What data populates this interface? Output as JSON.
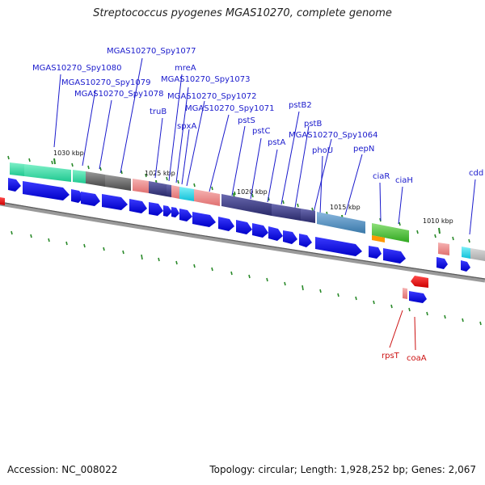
{
  "title": "Streptococcus pyogenes MGAS10270, complete genome",
  "footer": {
    "accession": "Accession: NC_008022",
    "summary": "Topology: circular; Length: 1,928,252 bp; Genes: 2,067"
  },
  "colors": {
    "backbone": "#7a7a7a",
    "cds": "#1010dd",
    "gene_label": "#1a1acc",
    "rna_label": "#cc1111",
    "rna": "#ee0000",
    "tick": "#2a8a2a"
  },
  "scale": {
    "ticks": [
      {
        "label": "1030 kbp"
      },
      {
        "label": "1025 kbp"
      },
      {
        "label": "1020 kbp"
      },
      {
        "label": "1015 kbp"
      },
      {
        "label": "1010 kbp"
      }
    ]
  },
  "gene_labels": [
    {
      "text": "MGAS10270_Spy1077",
      "color": "gene"
    },
    {
      "text": "MGAS10270_Spy1080",
      "color": "gene"
    },
    {
      "text": "mreA",
      "color": "gene"
    },
    {
      "text": "MGAS10270_Spy1073",
      "color": "gene"
    },
    {
      "text": "MGAS10270_Spy1079",
      "color": "gene"
    },
    {
      "text": "MGAS10270_Spy1078",
      "color": "gene"
    },
    {
      "text": "MGAS10270_Spy1072",
      "color": "gene"
    },
    {
      "text": "pstB2",
      "color": "gene"
    },
    {
      "text": "MGAS10270_Spy1071",
      "color": "gene"
    },
    {
      "text": "truB",
      "color": "gene"
    },
    {
      "text": "pstS",
      "color": "gene"
    },
    {
      "text": "pstB",
      "color": "gene"
    },
    {
      "text": "spxA",
      "color": "gene"
    },
    {
      "text": "pstC",
      "color": "gene"
    },
    {
      "text": "MGAS10270_Spy1064",
      "color": "gene"
    },
    {
      "text": "pstA",
      "color": "gene"
    },
    {
      "text": "phoU",
      "color": "gene"
    },
    {
      "text": "pepN",
      "color": "gene"
    },
    {
      "text": "ciaR",
      "color": "gene"
    },
    {
      "text": "ciaH",
      "color": "gene"
    },
    {
      "text": "cdd",
      "color": "gene"
    },
    {
      "text": "rpsT",
      "color": "rna"
    },
    {
      "text": "coaA",
      "color": "rna"
    }
  ]
}
